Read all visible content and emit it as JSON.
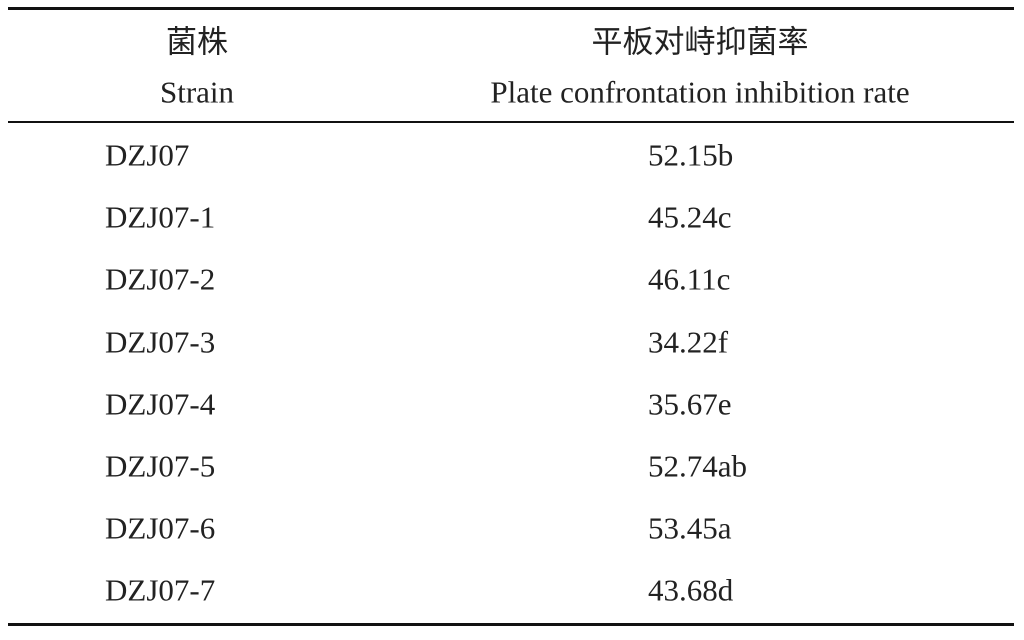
{
  "table": {
    "header": [
      [
        "菌株",
        "Strain"
      ],
      [
        "平板对峙抑菌率",
        "Plate confrontation inhibition rate"
      ]
    ],
    "rows": [
      [
        "DZJ07",
        "52.15b"
      ],
      [
        "DZJ07-1",
        "45.24c"
      ],
      [
        "DZJ07-2",
        "46.11c"
      ],
      [
        "DZJ07-3",
        "34.22f"
      ],
      [
        "DZJ07-4",
        "35.67e"
      ],
      [
        "DZJ07-5",
        "52.74ab"
      ],
      [
        "DZJ07-6",
        "53.45a"
      ],
      [
        "DZJ07-7",
        "43.68d"
      ]
    ]
  }
}
